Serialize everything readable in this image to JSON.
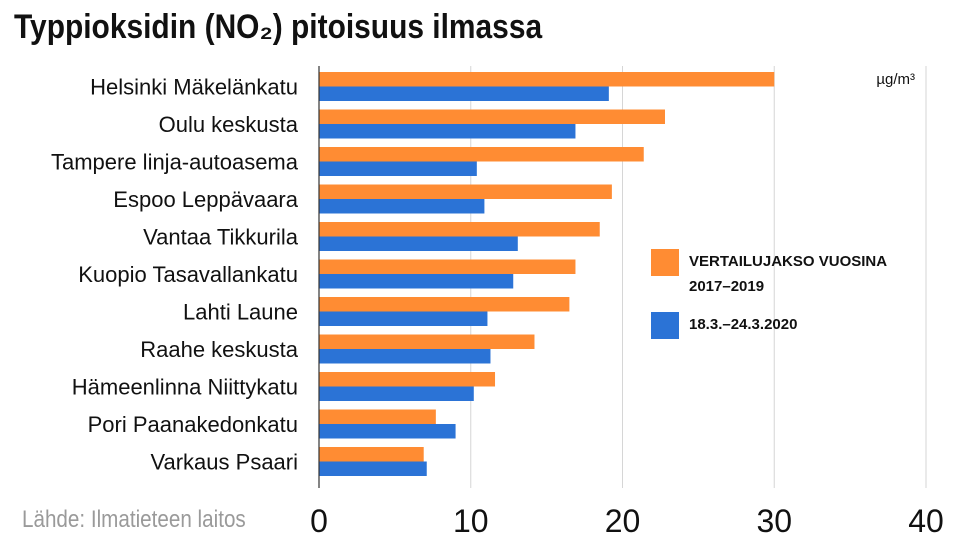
{
  "title": "Typpioksidin (NO₂) pitoisuus ilmassa",
  "source": "Lähde: Ilmatieteen laitos",
  "colors": {
    "series_a": "#FF8C33",
    "series_b": "#2B73D6"
  },
  "chart_data": {
    "type": "bar",
    "orientation": "horizontal",
    "title": "Typpioksidin (NO₂) pitoisuus ilmassa",
    "unit": "µg/m³",
    "xlim": [
      0,
      40
    ],
    "xticks": [
      0,
      10,
      20,
      30,
      40
    ],
    "grid": true,
    "legend_position": "right",
    "categories": [
      "Helsinki Mäkelänkatu",
      "Oulu keskusta",
      "Tampere linja-autoasema",
      "Espoo Leppävaara",
      "Vantaa Tikkurila",
      "Kuopio Tasavallankatu",
      "Lahti Laune",
      "Raahe keskusta",
      "Hämeenlinna Niittykatu",
      "Pori Paanakedonkatu",
      "Varkaus Psaari"
    ],
    "series": [
      {
        "name_line1": "VERTAILUJAKSO VUOSINA",
        "name_line2": "2017–2019",
        "color": "#FF8C33",
        "values": [
          30.0,
          22.8,
          21.4,
          19.3,
          18.5,
          16.9,
          16.5,
          14.2,
          11.6,
          7.7,
          6.9
        ]
      },
      {
        "name_line1": "18.3.–24.3.2020",
        "name_line2": "",
        "color": "#2B73D6",
        "values": [
          19.1,
          16.9,
          10.4,
          10.9,
          13.1,
          12.8,
          11.1,
          11.3,
          10.2,
          9.0,
          7.1
        ]
      }
    ]
  }
}
